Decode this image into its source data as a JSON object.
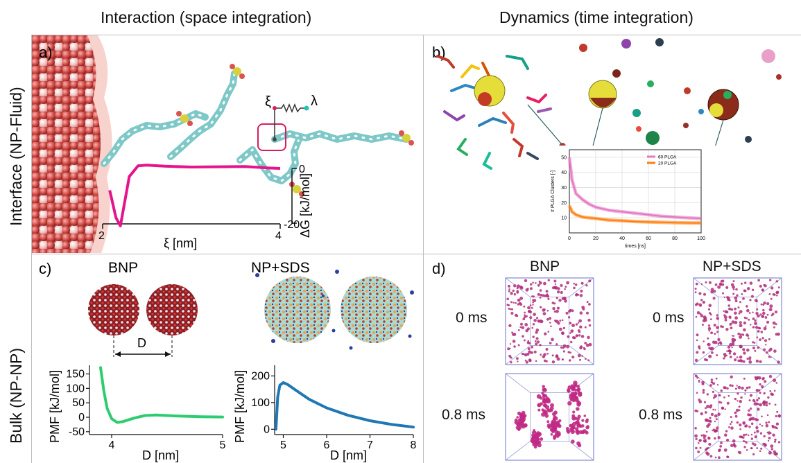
{
  "columns": {
    "left": "Interaction (space integration)",
    "right": "Dynamics (time integration)"
  },
  "rows": {
    "top": "Interface (NP-Fluid)",
    "bottom": "Bulk (NP-NP)"
  },
  "panels": {
    "a": {
      "letter": "a)",
      "xi": "ξ",
      "lambda": "λ",
      "x_label": "ξ [nm]",
      "y_label": "ΔG [kJ/mol]",
      "x_ticks": [
        "2",
        "4"
      ],
      "y_ticks": [
        "0",
        "-20"
      ]
    },
    "b": {
      "letter": "b)"
    },
    "c": {
      "letter": "c)",
      "bnp_title": "BNP",
      "sds_title": "NP+SDS",
      "distance_label": "D"
    },
    "d": {
      "letter": "d)",
      "bnp_title": "BNP",
      "sds_title": "NP+SDS",
      "time_0": "0 ms",
      "time_1": "0.8 ms",
      "time_0b": "0 ms",
      "time_1b": "0.8 ms"
    }
  },
  "chart_data": [
    {
      "type": "line",
      "panel": "b-inset",
      "xlabel": "times [ns]",
      "ylabel": "# PLGA Clusters [-]",
      "xlim": [
        0,
        100
      ],
      "ylim": [
        0,
        55
      ],
      "x_ticks": [
        "0",
        "20",
        "40",
        "60",
        "80",
        "100"
      ],
      "y_ticks": [
        "10",
        "20",
        "30",
        "40",
        "50"
      ],
      "grid": true,
      "legend_position": "top-right",
      "series": [
        {
          "name": "60 PLGA",
          "color": "#e377c2",
          "x": [
            0,
            2,
            5,
            10,
            15,
            20,
            30,
            40,
            50,
            60,
            70,
            80,
            90,
            100
          ],
          "y": [
            50,
            35,
            26,
            22,
            19,
            17,
            15,
            14,
            13,
            12,
            11,
            10.5,
            10,
            9.5
          ]
        },
        {
          "name": "20 PLGA",
          "color": "#ff7f0e",
          "x": [
            0,
            2,
            5,
            10,
            15,
            20,
            30,
            40,
            50,
            60,
            70,
            80,
            90,
            100
          ],
          "y": [
            18,
            14,
            12,
            10.5,
            10,
            9.5,
            8.5,
            8,
            7.5,
            7.2,
            7,
            6.8,
            6.6,
            6.5
          ]
        }
      ]
    },
    {
      "type": "line",
      "panel": "c-bnp",
      "xlabel": "D [nm]",
      "ylabel": "PMF [kJ/mol]",
      "xlim": [
        3.8,
        5
      ],
      "ylim": [
        -60,
        180
      ],
      "x_ticks": [
        "4",
        "5"
      ],
      "y_ticks": [
        "150",
        "100",
        "50",
        "0",
        "-50"
      ],
      "series": [
        {
          "color": "#2ecc71",
          "x": [
            3.9,
            3.93,
            3.96,
            4.0,
            4.05,
            4.1,
            4.2,
            4.3,
            4.4,
            4.5,
            4.6,
            4.7,
            4.8,
            5.0
          ],
          "y": [
            172,
            90,
            30,
            -5,
            -18,
            -15,
            -3,
            6,
            8,
            6,
            4,
            3,
            2,
            1
          ]
        }
      ]
    },
    {
      "type": "line",
      "panel": "c-sds",
      "xlabel": "D [nm]",
      "ylabel": "PMF [kJ/mol]",
      "xlim": [
        4.8,
        8
      ],
      "ylim": [
        -20,
        240
      ],
      "x_ticks": [
        "5",
        "6",
        "7",
        "8"
      ],
      "y_ticks": [
        "200",
        "100",
        "0"
      ],
      "series": [
        {
          "color": "#1f77b4",
          "x": [
            4.83,
            4.87,
            4.92,
            5.0,
            5.1,
            5.3,
            5.6,
            6.0,
            6.5,
            7.0,
            7.5,
            8.0
          ],
          "y": [
            0,
            120,
            165,
            175,
            168,
            145,
            112,
            80,
            52,
            32,
            18,
            8
          ]
        }
      ]
    },
    {
      "type": "line",
      "panel": "a",
      "xlabel": "ξ [nm]",
      "ylabel": "ΔG [kJ/mol]",
      "xlim": [
        2,
        4
      ],
      "ylim": [
        -22,
        3
      ],
      "x_ticks": [
        "2",
        "4"
      ],
      "y_ticks": [
        "0",
        "-20"
      ],
      "series": [
        {
          "color": "#e6138a",
          "x": [
            2.08,
            2.15,
            2.2,
            2.25,
            2.3,
            2.4,
            2.5,
            2.7,
            3.0,
            3.3,
            3.6,
            3.85,
            4.0
          ],
          "y": [
            -8,
            -18,
            -21,
            -12,
            -3,
            1,
            1.2,
            0.8,
            0.5,
            0.6,
            0.7,
            0.2,
            0
          ]
        }
      ]
    }
  ]
}
